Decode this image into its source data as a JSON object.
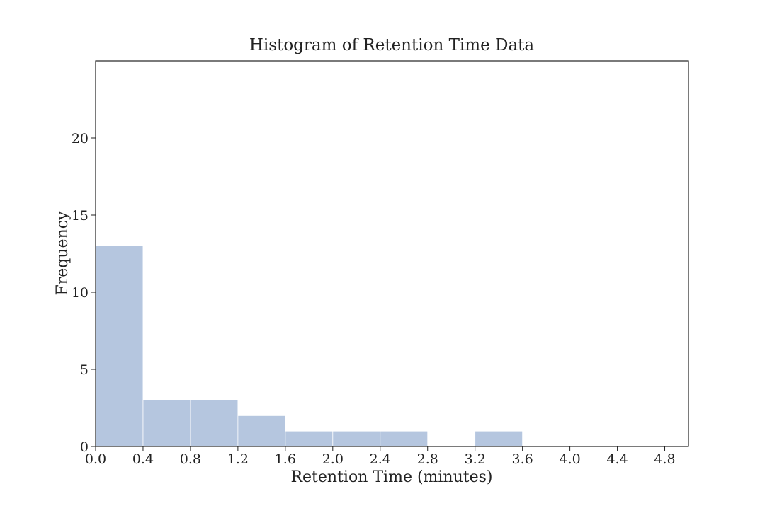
{
  "chart_data": {
    "type": "bar",
    "title": "Histogram of Retention Time Data",
    "xlabel": "Retention Time (minutes)",
    "ylabel": "Frequency",
    "bin_edges": [
      0.0,
      0.4,
      0.8,
      1.2,
      1.6,
      2.0,
      2.4,
      2.8,
      3.2,
      3.6
    ],
    "values": [
      13,
      3,
      3,
      2,
      1,
      1,
      1,
      0,
      1
    ],
    "xlim": [
      0.0,
      5.0
    ],
    "ylim": [
      0,
      25
    ],
    "xticks": [
      "0.0",
      "0.4",
      "0.8",
      "1.2",
      "1.6",
      "2.0",
      "2.4",
      "2.8",
      "3.2",
      "3.6",
      "4.0",
      "4.4",
      "4.8"
    ],
    "yticks": [
      "0",
      "5",
      "10",
      "15",
      "20"
    ],
    "grid": false,
    "legend": false,
    "bar_color": "#b5c6df",
    "bar_edge_color": "#ffffff"
  }
}
